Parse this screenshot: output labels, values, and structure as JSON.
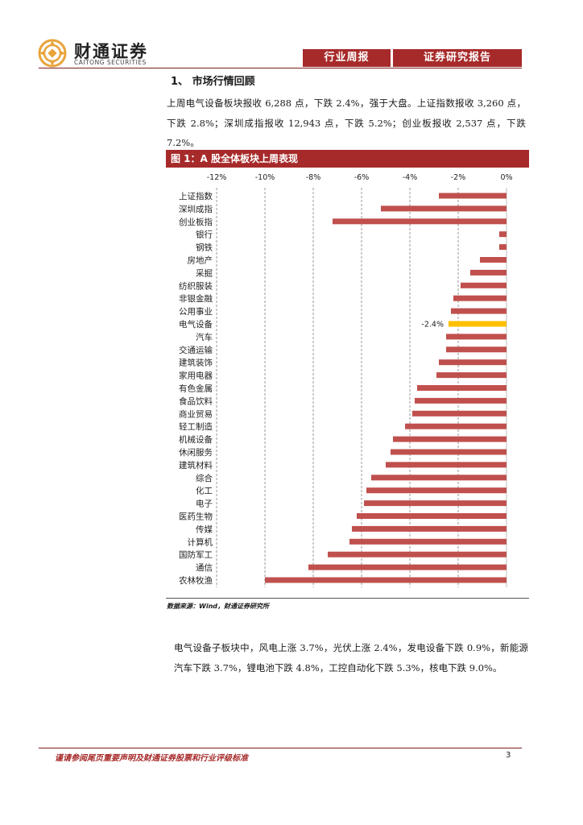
{
  "header": {
    "brand_cn": "财通证券",
    "brand_en": "CAITONG SECURITIES",
    "tab_weekly": "行业周报",
    "tab_report": "证券研究报告"
  },
  "section": {
    "title": "1、 市场行情回顾",
    "paragraph": "上周电气设备板块报收 6,288 点，下跌 2.4%，强于大盘。上证指数报收 3,260 点，下跌 2.8%；深圳成指报收 12,943 点，下跌 5.2%；创业板报收 2,537 点，下跌 7.2%。"
  },
  "figure": {
    "caption": "图 1：A 股全体板块上周表现",
    "source": "数据来源：Wind，财通证券研究所"
  },
  "paragraph2": "电气设备子板块中，风电上涨 3.7%，光伏上涨 2.4%，发电设备下跌 0.9%，新能源汽车下跌 3.7%，锂电池下跌 4.8%，工控自动化下跌 5.3%，核电下跌 9.0%。",
  "footer": {
    "disclaimer": "谨请参阅尾页重要声明及财通证券股票和行业评级标准",
    "page": "3"
  },
  "colors": {
    "brand_red": "#a72a2a",
    "bar_red": "#c0504d",
    "highlight": "#ffc000"
  },
  "chart_data": {
    "type": "bar",
    "orientation": "horizontal",
    "title": "图 1：A 股全体板块上周表现",
    "x_ticks": [
      "-12%",
      "-10%",
      "-8%",
      "-6%",
      "-4%",
      "-2%",
      "0%"
    ],
    "xlim": [
      -12,
      0
    ],
    "unit": "%",
    "categories": [
      "上证指数",
      "深圳成指",
      "创业板指",
      "银行",
      "钢铁",
      "房地产",
      "采掘",
      "纺织服装",
      "非银金融",
      "公用事业",
      "电气设备",
      "汽车",
      "交通运输",
      "建筑装饰",
      "家用电器",
      "有色金属",
      "食品饮料",
      "商业贸易",
      "轻工制造",
      "机械设备",
      "休闲服务",
      "建筑材料",
      "综合",
      "化工",
      "电子",
      "医药生物",
      "传媒",
      "计算机",
      "国防军工",
      "通信",
      "农林牧渔"
    ],
    "values": [
      -2.8,
      -5.2,
      -7.2,
      -0.3,
      -0.3,
      -1.1,
      -1.5,
      -1.9,
      -2.2,
      -2.3,
      -2.4,
      -2.5,
      -2.5,
      -2.8,
      -2.9,
      -3.7,
      -3.8,
      -3.9,
      -4.2,
      -4.7,
      -4.8,
      -5.0,
      -5.6,
      -5.8,
      -5.9,
      -6.2,
      -6.4,
      -6.5,
      -7.4,
      -8.2,
      -10.0
    ],
    "highlight_category": "电气设备",
    "highlight_label": "-2.4%",
    "grid": true
  }
}
